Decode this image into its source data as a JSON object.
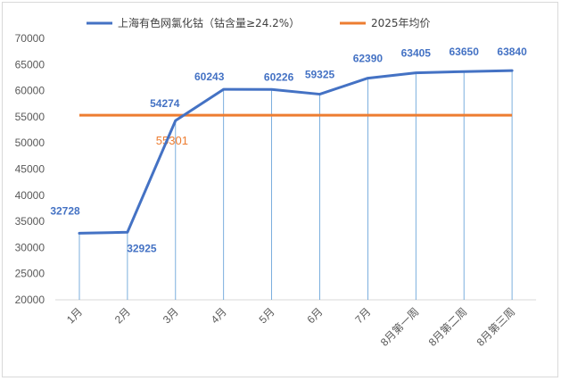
{
  "chart_data": {
    "type": "line",
    "categories": [
      "1月",
      "2月",
      "3月",
      "4月",
      "5月",
      "6月",
      "7月",
      "8月第一周",
      "8月第二周",
      "8月第三周"
    ],
    "series": [
      {
        "name": "上海有色网氯化钴（钴含量≥24.2%）",
        "values": [
          32728,
          32925,
          54274,
          60243,
          60226,
          59325,
          62390,
          63405,
          63650,
          63840
        ],
        "labels": [
          "32728",
          "32925",
          "54274",
          "60243",
          "60226",
          "59325",
          "62390",
          "63405",
          "63650",
          "63840"
        ],
        "color": "#4472c4"
      },
      {
        "name": "2025年均价",
        "value": 55301,
        "label": "55301",
        "color": "#ed7d31"
      }
    ],
    "y_ticks": [
      "20000",
      "25000",
      "30000",
      "35000",
      "40000",
      "45000",
      "50000",
      "55000",
      "60000",
      "65000",
      "70000"
    ],
    "ylim": [
      20000,
      70000
    ],
    "grid": false,
    "drop_lines": true,
    "legend_position": "top"
  }
}
